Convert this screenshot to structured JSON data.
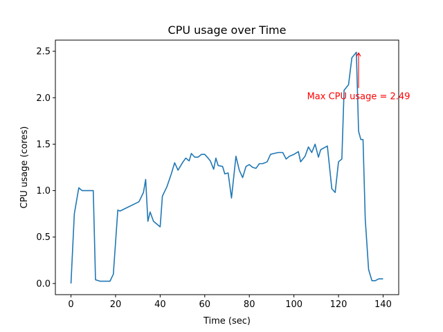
{
  "chart_data": {
    "type": "line",
    "title": "CPU usage over Time",
    "xlabel": "Time (sec)",
    "ylabel": "CPU usage (cores)",
    "xlim": [
      -7,
      147
    ],
    "ylim": [
      -0.12,
      2.62
    ],
    "xticks": [
      0,
      20,
      40,
      60,
      80,
      100,
      120,
      140
    ],
    "yticks": [
      0.0,
      0.5,
      1.0,
      1.5,
      2.0,
      2.5
    ],
    "ytick_labels": [
      "0.0",
      "0.5",
      "1.0",
      "1.5",
      "2.0",
      "2.5"
    ],
    "grid": false,
    "series": [
      {
        "color": "#1f77b4",
        "x": [
          0,
          1.5,
          3.5,
          5,
          7,
          10,
          11,
          13,
          15,
          17.5,
          19,
          21,
          22,
          30.5,
          32.5,
          33.5,
          34.5,
          35.5,
          37,
          40,
          41,
          43,
          45,
          46.5,
          48,
          50,
          51.5,
          53,
          54,
          55.5,
          57,
          58.5,
          60,
          61.5,
          62.5,
          64,
          65,
          66,
          68,
          69,
          70.5,
          72,
          74,
          75.5,
          77,
          78.5,
          80,
          81.5,
          83,
          84.5,
          86,
          88,
          89.5,
          91,
          93,
          95,
          96.5,
          98,
          100,
          102,
          103,
          105,
          106.5,
          108,
          109.5,
          111,
          112,
          113.5,
          115,
          117,
          118.5,
          120,
          121.5,
          122.5,
          124.5,
          126,
          128,
          129,
          130,
          131,
          132,
          133.5,
          135,
          136.5,
          138,
          140
        ],
        "y": [
          0.0,
          0.75,
          1.03,
          1.0,
          1.0,
          1.0,
          0.04,
          0.025,
          0.025,
          0.025,
          0.1,
          0.79,
          0.78,
          0.88,
          0.98,
          1.12,
          0.67,
          0.77,
          0.67,
          0.61,
          0.94,
          1.04,
          1.18,
          1.3,
          1.22,
          1.3,
          1.35,
          1.32,
          1.4,
          1.36,
          1.36,
          1.39,
          1.39,
          1.35,
          1.32,
          1.23,
          1.35,
          1.27,
          1.26,
          1.18,
          1.19,
          0.92,
          1.37,
          1.22,
          1.14,
          1.26,
          1.28,
          1.25,
          1.24,
          1.29,
          1.29,
          1.31,
          1.39,
          1.4,
          1.41,
          1.41,
          1.34,
          1.37,
          1.39,
          1.42,
          1.31,
          1.37,
          1.47,
          1.41,
          1.5,
          1.36,
          1.44,
          1.46,
          1.48,
          1.02,
          0.98,
          1.31,
          1.34,
          2.08,
          2.14,
          2.43,
          2.49,
          1.64,
          1.55,
          1.55,
          0.69,
          0.15,
          0.03,
          0.03,
          0.05,
          0.05
        ]
      }
    ],
    "annotation": {
      "text": "Max CPU usage = 2.49",
      "color": "#ff0000",
      "point": {
        "x": 129,
        "y": 2.49
      },
      "text_anchor": {
        "x": 129,
        "y": 2.0
      }
    }
  }
}
